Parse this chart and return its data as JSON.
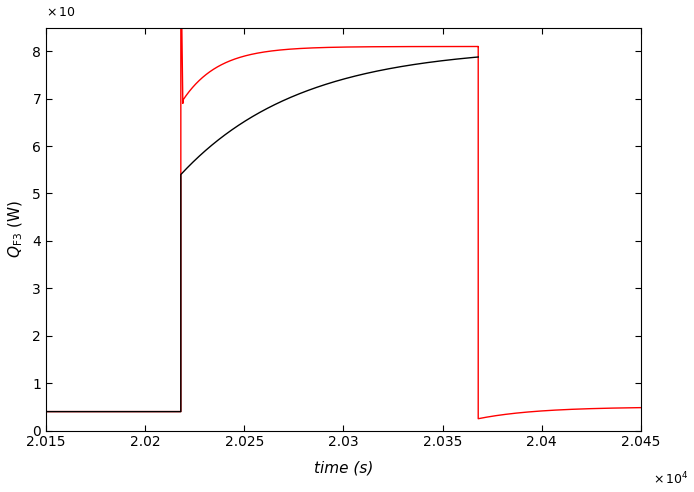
{
  "xlim": [
    20150,
    20450
  ],
  "ylim": [
    0,
    8.5
  ],
  "xlabel": "time (s)",
  "ylabel": "$Q_{\\mathrm{F3}}$ (W)",
  "xtick_positions": [
    2.015,
    2.02,
    2.025,
    2.03,
    2.035,
    2.04,
    2.045
  ],
  "xtick_labels": [
    "2.015",
    "2.02",
    "2.025",
    "2.03",
    "2.035",
    "2.04",
    "2.045"
  ],
  "ytick_positions": [
    0,
    1,
    2,
    3,
    4,
    5,
    6,
    7,
    8
  ],
  "ytick_labels": [
    "0",
    "1",
    "2",
    "3",
    "4",
    "5",
    "6",
    "7",
    "8"
  ],
  "low_kappa_color": "black",
  "high_kappa_color": "red",
  "background_color": "#ffffff",
  "t_start": 20150,
  "t_switch_on": 20218,
  "t_switch_off": 20368,
  "t_end": 20450,
  "baseline_value": 0.4,
  "high_value": 8.1,
  "red_spike_high": 8.5,
  "red_dip": 6.9,
  "black_dip": 5.4,
  "red_tau": 18,
  "black_tau": 60,
  "after_off_dip": 0.25,
  "after_off_plateau": 0.5,
  "after_off_tau": 30,
  "linewidth": 1.0
}
